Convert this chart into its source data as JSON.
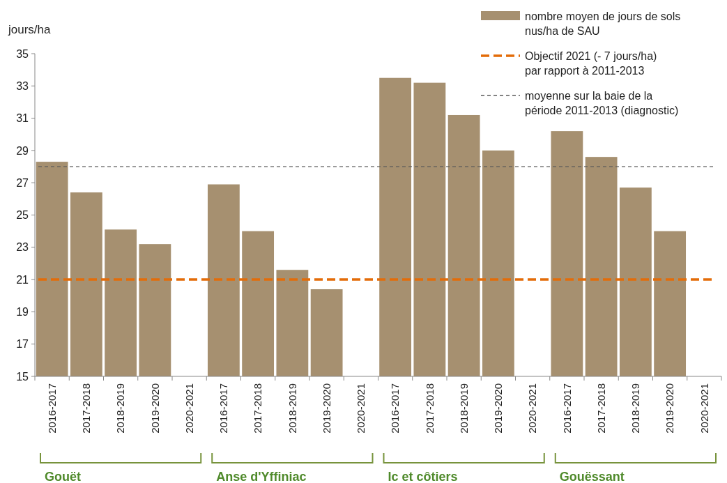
{
  "chart_data": {
    "type": "bar",
    "ylabel": "jours/ha",
    "categories": [
      "2016-2017",
      "2017-2018",
      "2018-2019",
      "2019-2020",
      "2020-2021",
      "2016-2017",
      "2017-2018",
      "2018-2019",
      "2019-2020",
      "2020-2021",
      "2016-2017",
      "2017-2018",
      "2018-2019",
      "2019-2020",
      "2020-2021",
      "2016-2017",
      "2017-2018",
      "2018-2019",
      "2019-2020",
      "2020-2021"
    ],
    "series": [
      {
        "name": "nombre moyen de jours de sols nus/ha de SAU",
        "color": "#a69070",
        "values": [
          28.3,
          26.4,
          24.1,
          23.2,
          null,
          26.9,
          24.0,
          21.6,
          20.4,
          null,
          33.5,
          33.2,
          31.2,
          29.0,
          null,
          30.2,
          28.6,
          26.7,
          24.0,
          null
        ]
      }
    ],
    "ylim": [
      15,
      35
    ],
    "yticks": [
      15,
      17,
      19,
      21,
      23,
      25,
      27,
      29,
      31,
      33,
      35
    ],
    "grid": false,
    "legend": "top right",
    "ref_lines": [
      {
        "axis": "y",
        "value": 21,
        "label": "Objectif 2021 (- 7 jours/ha) par rapport à 2011-2013",
        "color": "#e36c09",
        "line_style": "dashed"
      },
      {
        "axis": "y",
        "value": 28,
        "label": "moyenne sur la baie de la période 2011-2013 (diagnostic)",
        "color": "#595959",
        "line_style": "dashed"
      }
    ],
    "annotations": [
      "Gouët",
      "Anse d'Yffiniac",
      "Ic et côtiers",
      "Gouëssant"
    ]
  }
}
